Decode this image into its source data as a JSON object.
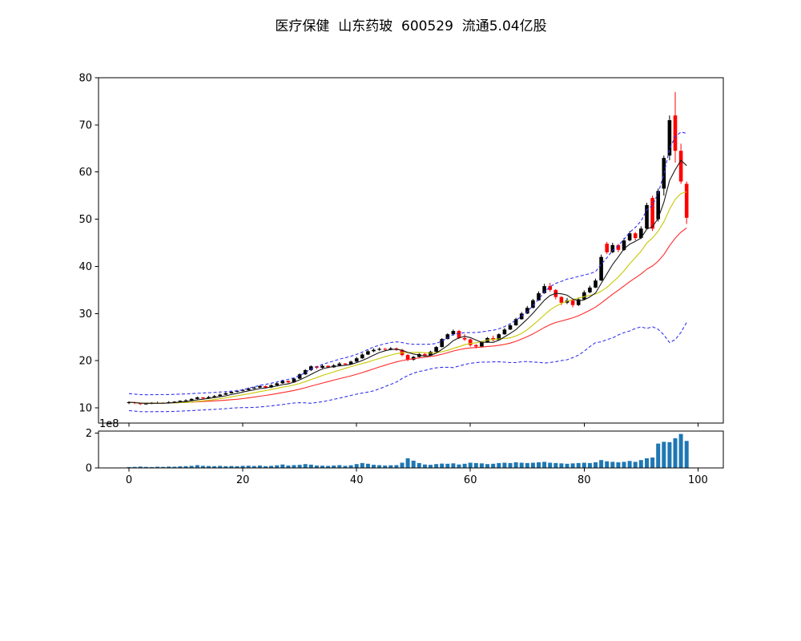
{
  "title": "医疗保健  山东药玻  600529  流通5.04亿股",
  "chart_data": {
    "type": "candlestick+volume",
    "title": "医疗保健  山东药玻  600529  流通5.04亿股",
    "price_axis": {
      "tick_labels": [
        "10",
        "20",
        "30",
        "40",
        "50",
        "60",
        "70",
        "80"
      ],
      "ticks": [
        10,
        20,
        30,
        40,
        50,
        60,
        70,
        80
      ],
      "ylim": [
        6.77,
        80
      ]
    },
    "x_axis": {
      "tick_labels": [
        "0",
        "20",
        "40",
        "60",
        "80",
        "100"
      ],
      "ticks": [
        0,
        20,
        40,
        60,
        80,
        100
      ],
      "xlim": [
        -5.35,
        104.45
      ]
    },
    "volume_axis": {
      "tick_labels": [
        "0",
        "2"
      ],
      "ticks": [
        0,
        2
      ],
      "offset_label": "1e8",
      "unit": "1e8",
      "ylim": [
        0,
        2.115
      ]
    },
    "legend": "none",
    "grid": false,
    "colors": {
      "up_candle": "#000000",
      "down_candle": "#ff0000",
      "ma5_line": "#1a1a1a",
      "ma10_line": "#c8c800",
      "ma20_line": "#ff2a2a",
      "bollinger_band": "#3333ee",
      "volume_bar": "#1f77b4",
      "axes": "#000000",
      "background": "#ffffff"
    },
    "overlays": [
      {
        "name": "ma5",
        "type": "sma",
        "window": 5,
        "style": "solid"
      },
      {
        "name": "ma10",
        "type": "sma",
        "window": 10,
        "style": "solid"
      },
      {
        "name": "ma20",
        "type": "sma",
        "window": 20,
        "style": "solid"
      },
      {
        "name": "bollinger_upper",
        "type": "bollinger",
        "window": 20,
        "k": 2,
        "style": "dashed"
      },
      {
        "name": "bollinger_lower",
        "type": "bollinger",
        "window": 20,
        "k": -2,
        "style": "dashed"
      }
    ],
    "candles_ohlc": [
      [
        11.0,
        11.4,
        10.8,
        11.2
      ],
      [
        11.2,
        11.3,
        10.8,
        11.0
      ],
      [
        11.0,
        11.1,
        10.6,
        10.8
      ],
      [
        10.8,
        11.1,
        10.7,
        10.9
      ],
      [
        10.9,
        11.2,
        10.8,
        11.0
      ],
      [
        11.0,
        11.3,
        10.9,
        11.1
      ],
      [
        11.1,
        11.2,
        10.9,
        11.0
      ],
      [
        11.0,
        11.4,
        10.9,
        11.2
      ],
      [
        11.2,
        11.4,
        11.0,
        11.3
      ],
      [
        11.3,
        11.6,
        11.2,
        11.5
      ],
      [
        11.5,
        11.8,
        11.4,
        11.6
      ],
      [
        11.6,
        12.0,
        11.5,
        11.9
      ],
      [
        11.9,
        12.4,
        11.8,
        12.2
      ],
      [
        12.2,
        12.3,
        11.9,
        12.0
      ],
      [
        12.0,
        12.5,
        11.9,
        12.3
      ],
      [
        12.3,
        12.7,
        12.2,
        12.5
      ],
      [
        12.5,
        13.0,
        12.4,
        12.8
      ],
      [
        12.8,
        13.3,
        12.7,
        13.1
      ],
      [
        13.1,
        13.6,
        13.0,
        13.4
      ],
      [
        13.4,
        13.8,
        13.3,
        13.6
      ],
      [
        13.6,
        14.0,
        13.5,
        13.8
      ],
      [
        13.8,
        14.3,
        13.7,
        14.1
      ],
      [
        14.1,
        14.5,
        14.0,
        14.3
      ],
      [
        14.3,
        14.8,
        14.2,
        14.6
      ],
      [
        14.6,
        14.7,
        14.1,
        14.3
      ],
      [
        14.3,
        15.0,
        14.2,
        14.8
      ],
      [
        14.8,
        15.4,
        14.7,
        15.2
      ],
      [
        15.2,
        15.9,
        15.1,
        15.7
      ],
      [
        15.7,
        15.8,
        15.2,
        15.4
      ],
      [
        15.4,
        16.4,
        15.3,
        16.2
      ],
      [
        16.2,
        17.3,
        16.1,
        17.1
      ],
      [
        17.1,
        18.2,
        17.0,
        18.0
      ],
      [
        18.0,
        19.0,
        17.8,
        18.8
      ],
      [
        18.8,
        18.9,
        18.2,
        18.5
      ],
      [
        18.5,
        19.2,
        18.4,
        18.9
      ],
      [
        18.9,
        19.0,
        18.4,
        18.6
      ],
      [
        18.6,
        19.3,
        18.5,
        19.0
      ],
      [
        19.0,
        19.7,
        18.9,
        19.4
      ],
      [
        19.4,
        19.5,
        19.0,
        19.2
      ],
      [
        19.2,
        20.0,
        19.1,
        19.8
      ],
      [
        19.8,
        20.8,
        19.7,
        20.5
      ],
      [
        20.5,
        21.6,
        20.4,
        21.3
      ],
      [
        21.3,
        22.3,
        21.2,
        22.0
      ],
      [
        22.0,
        22.6,
        21.8,
        22.3
      ],
      [
        22.3,
        22.8,
        22.1,
        22.5
      ],
      [
        22.5,
        22.7,
        22.1,
        22.4
      ],
      [
        22.4,
        22.9,
        22.2,
        22.6
      ],
      [
        22.6,
        22.8,
        22.1,
        22.3
      ],
      [
        22.3,
        22.5,
        20.9,
        21.2
      ],
      [
        21.2,
        21.4,
        19.9,
        20.2
      ],
      [
        20.2,
        21.0,
        20.0,
        20.8
      ],
      [
        20.8,
        21.6,
        20.7,
        21.4
      ],
      [
        21.4,
        21.6,
        20.9,
        21.1
      ],
      [
        21.1,
        22.1,
        21.0,
        21.9
      ],
      [
        21.9,
        23.1,
        21.8,
        22.9
      ],
      [
        22.9,
        24.8,
        22.8,
        24.6
      ],
      [
        24.6,
        25.8,
        24.5,
        25.6
      ],
      [
        25.6,
        26.6,
        25.3,
        26.3
      ],
      [
        26.3,
        26.5,
        24.6,
        24.8
      ],
      [
        24.8,
        25.6,
        24.2,
        24.5
      ],
      [
        24.5,
        24.7,
        23.0,
        23.3
      ],
      [
        23.3,
        23.5,
        22.6,
        23.0
      ],
      [
        23.0,
        24.1,
        22.9,
        23.9
      ],
      [
        23.9,
        25.0,
        23.8,
        24.8
      ],
      [
        24.8,
        25.3,
        24.1,
        24.4
      ],
      [
        24.4,
        25.8,
        24.3,
        25.6
      ],
      [
        25.6,
        26.9,
        25.5,
        26.6
      ],
      [
        26.6,
        27.8,
        26.5,
        27.5
      ],
      [
        27.5,
        29.1,
        27.4,
        28.8
      ],
      [
        28.8,
        30.3,
        28.7,
        30.0
      ],
      [
        30.0,
        31.6,
        29.9,
        31.2
      ],
      [
        31.2,
        33.1,
        31.1,
        32.8
      ],
      [
        32.8,
        34.7,
        32.7,
        34.3
      ],
      [
        34.3,
        36.3,
        34.2,
        35.8
      ],
      [
        35.8,
        36.5,
        34.6,
        35.0
      ],
      [
        35.0,
        35.2,
        33.0,
        33.5
      ],
      [
        33.5,
        33.7,
        31.8,
        32.3
      ],
      [
        32.3,
        33.3,
        32.0,
        32.8
      ],
      [
        32.8,
        33.0,
        31.3,
        31.8
      ],
      [
        31.8,
        33.4,
        31.6,
        33.0
      ],
      [
        33.0,
        34.9,
        32.9,
        34.5
      ],
      [
        34.5,
        35.9,
        34.3,
        35.5
      ],
      [
        35.5,
        37.4,
        35.4,
        37.0
      ],
      [
        37.0,
        42.5,
        36.9,
        42.0
      ],
      [
        44.8,
        45.2,
        42.6,
        43.0
      ],
      [
        43.0,
        45.0,
        42.8,
        44.5
      ],
      [
        44.5,
        44.8,
        43.0,
        43.5
      ],
      [
        43.5,
        46.0,
        43.3,
        45.5
      ],
      [
        45.5,
        47.5,
        45.3,
        47.0
      ],
      [
        47.0,
        47.3,
        45.5,
        46.0
      ],
      [
        46.0,
        48.5,
        45.8,
        48.0
      ],
      [
        48.0,
        53.5,
        47.8,
        53.0
      ],
      [
        54.5,
        55.0,
        47.5,
        48.0
      ],
      [
        50.0,
        56.5,
        49.5,
        56.0
      ],
      [
        56.5,
        63.5,
        55.0,
        63.0
      ],
      [
        63.5,
        72.0,
        62.5,
        71.0
      ],
      [
        72.0,
        77.0,
        62.0,
        64.5
      ],
      [
        64.5,
        66.0,
        57.5,
        58.0
      ],
      [
        57.5,
        58.0,
        49.0,
        50.3
      ]
    ],
    "volumes_1e8": [
      0.05,
      0.06,
      0.08,
      0.06,
      0.05,
      0.07,
      0.06,
      0.08,
      0.07,
      0.09,
      0.1,
      0.12,
      0.16,
      0.12,
      0.11,
      0.1,
      0.12,
      0.1,
      0.11,
      0.1,
      0.12,
      0.13,
      0.11,
      0.14,
      0.1,
      0.12,
      0.15,
      0.2,
      0.14,
      0.16,
      0.18,
      0.22,
      0.19,
      0.14,
      0.13,
      0.12,
      0.14,
      0.16,
      0.12,
      0.15,
      0.22,
      0.28,
      0.24,
      0.18,
      0.16,
      0.14,
      0.15,
      0.16,
      0.3,
      0.55,
      0.42,
      0.28,
      0.2,
      0.18,
      0.22,
      0.25,
      0.24,
      0.26,
      0.2,
      0.24,
      0.3,
      0.28,
      0.26,
      0.22,
      0.24,
      0.28,
      0.3,
      0.28,
      0.32,
      0.3,
      0.28,
      0.3,
      0.32,
      0.35,
      0.3,
      0.28,
      0.26,
      0.24,
      0.26,
      0.28,
      0.3,
      0.28,
      0.32,
      0.45,
      0.38,
      0.35,
      0.32,
      0.35,
      0.4,
      0.35,
      0.45,
      0.55,
      0.6,
      1.4,
      1.5,
      1.48,
      1.7,
      1.95,
      1.55
    ]
  }
}
